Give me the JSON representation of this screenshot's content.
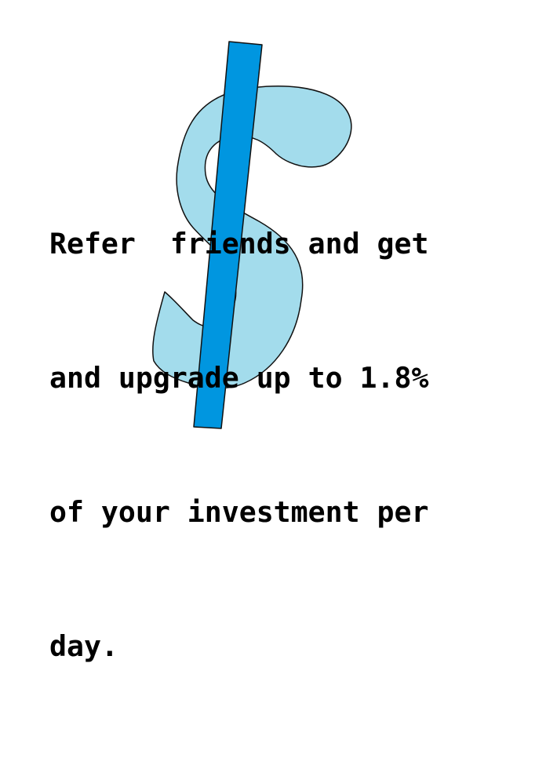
{
  "message": {
    "lines": [
      "Refer  friends and get",
      "and upgrade up to 1.8%",
      "of your investment per",
      "day."
    ]
  },
  "graphic": {
    "icon": "dollar-sign-icon",
    "sign_fill": "#a3dcec",
    "sign_outline": "#111111",
    "bar_fill": "#0096e0",
    "bar_outline": "#111111",
    "text_color": "#000000",
    "background": "#ffffff"
  }
}
